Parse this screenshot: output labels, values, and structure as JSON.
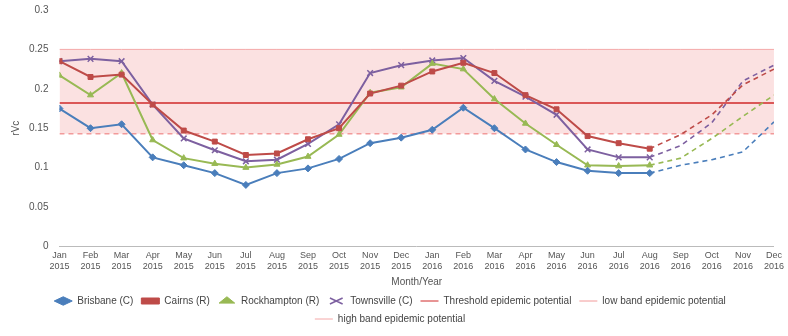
{
  "chart_data": {
    "type": "line",
    "x_label": "Month/Year",
    "y_label": "rVc",
    "categories": [
      "Jan 2015",
      "Feb 2015",
      "Mar 2015",
      "Apr 2015",
      "May 2015",
      "Jun 2015",
      "Jul 2015",
      "Aug 2015",
      "Sep 2015",
      "Oct 2015",
      "Nov 2015",
      "Dec 2015",
      "Jan 2016",
      "Feb 2016",
      "Mar 2016",
      "Apr 2016",
      "May 2016",
      "Jun 2016",
      "Jul 2016",
      "Aug 2016",
      "Sep 2016",
      "Oct 2016",
      "Nov 2016",
      "Dec 2016"
    ],
    "ylim": [
      0,
      0.3
    ],
    "yticks": [
      0,
      0.05,
      0.1,
      0.15,
      0.2,
      0.25,
      0.3
    ],
    "grid": false,
    "legend": "bottom",
    "series": [
      {
        "name": "Brisbane (C)",
        "color": "#4a7ebb",
        "marker": "diamond",
        "line_style": "solid",
        "values": [
          0.175,
          0.15,
          0.155,
          0.113,
          0.103,
          0.093,
          0.078,
          0.093,
          0.099,
          0.111,
          0.131,
          0.138,
          0.148,
          0.176,
          0.15,
          0.123,
          0.107,
          0.096,
          0.093,
          0.093,
          null,
          null,
          null,
          null
        ]
      },
      {
        "name": "Cairns (R)",
        "color": "#be4b48",
        "marker": "square",
        "line_style": "solid",
        "values": [
          0.235,
          0.215,
          0.218,
          0.18,
          0.147,
          0.133,
          0.116,
          0.118,
          0.136,
          0.15,
          0.194,
          0.204,
          0.222,
          0.233,
          0.22,
          0.192,
          0.174,
          0.14,
          0.131,
          0.124,
          null,
          null,
          null,
          null
        ]
      },
      {
        "name": "Rockhampton (R)",
        "color": "#98b954",
        "marker": "triangle",
        "line_style": "solid",
        "values": [
          0.217,
          0.192,
          0.22,
          0.135,
          0.112,
          0.105,
          0.1,
          0.104,
          0.114,
          0.142,
          0.195,
          0.202,
          0.232,
          0.225,
          0.187,
          0.156,
          0.129,
          0.103,
          0.102,
          0.103,
          null,
          null,
          null,
          null
        ]
      },
      {
        "name": "Townsville (C)",
        "color": "#7d60a0",
        "marker": "x",
        "line_style": "solid",
        "values": [
          0.235,
          0.238,
          0.235,
          0.18,
          0.137,
          0.122,
          0.108,
          0.11,
          0.13,
          0.155,
          0.22,
          0.23,
          0.236,
          0.239,
          0.21,
          0.19,
          0.167,
          0.123,
          0.113,
          0.113,
          null,
          null,
          null,
          null
        ]
      },
      {
        "name": "Threshold epidemic potential",
        "color": "#d02a2a",
        "marker": "none",
        "line_style": "solid",
        "values": [
          0.182,
          0.182,
          0.182,
          0.182,
          0.182,
          0.182,
          0.182,
          0.182,
          0.182,
          0.182,
          0.182,
          0.182,
          0.182,
          0.182,
          0.182,
          0.182,
          0.182,
          0.182,
          0.182,
          0.182,
          0.182,
          0.182,
          0.182,
          0.182
        ]
      },
      {
        "name": "low band epidemic potential",
        "color": "#f29a9a",
        "marker": "none",
        "line_style": "dashed",
        "values": [
          0.143,
          0.143,
          0.143,
          0.143,
          0.143,
          0.143,
          0.143,
          0.143,
          0.143,
          0.143,
          0.143,
          0.143,
          0.143,
          0.143,
          0.143,
          0.143,
          0.143,
          0.143,
          0.143,
          0.143,
          0.143,
          0.143,
          0.143,
          0.143
        ]
      },
      {
        "name": "high band epidemic potential",
        "color": "#f4a8a8",
        "marker": "none",
        "line_style": "solid",
        "type": "area",
        "values": [
          0.25,
          0.25,
          0.25,
          0.25,
          0.25,
          0.25,
          0.25,
          0.25,
          0.25,
          0.25,
          0.25,
          0.25,
          0.25,
          0.25,
          0.25,
          0.25,
          0.25,
          0.25,
          0.25,
          0.25,
          0.25,
          0.25,
          0.25,
          0.25
        ]
      },
      {
        "name": "Brisbane (C)",
        "color": "#4a7ebb",
        "marker": "none",
        "line_style": "dashed",
        "values": [
          null,
          null,
          null,
          null,
          null,
          null,
          null,
          null,
          null,
          null,
          null,
          null,
          null,
          null,
          null,
          null,
          null,
          null,
          null,
          0.093,
          0.103,
          0.11,
          0.12,
          0.158
        ]
      },
      {
        "name": "Cairns (R)",
        "color": "#be4b48",
        "marker": "none",
        "line_style": "dashed",
        "values": [
          null,
          null,
          null,
          null,
          null,
          null,
          null,
          null,
          null,
          null,
          null,
          null,
          null,
          null,
          null,
          null,
          null,
          null,
          null,
          0.124,
          0.142,
          0.167,
          0.205,
          0.225
        ]
      },
      {
        "name": "Rockhampton (R)",
        "color": "#98b954",
        "marker": "none",
        "line_style": "dashed",
        "values": [
          null,
          null,
          null,
          null,
          null,
          null,
          null,
          null,
          null,
          null,
          null,
          null,
          null,
          null,
          null,
          null,
          null,
          null,
          null,
          0.103,
          0.112,
          0.137,
          0.165,
          0.192
        ]
      },
      {
        "name": "Townsville (C)",
        "color": "#7d60a0",
        "marker": "none",
        "line_style": "dashed",
        "values": [
          null,
          null,
          null,
          null,
          null,
          null,
          null,
          null,
          null,
          null,
          null,
          null,
          null,
          null,
          null,
          null,
          null,
          null,
          null,
          0.113,
          0.128,
          0.157,
          0.21,
          0.23
        ]
      }
    ]
  }
}
